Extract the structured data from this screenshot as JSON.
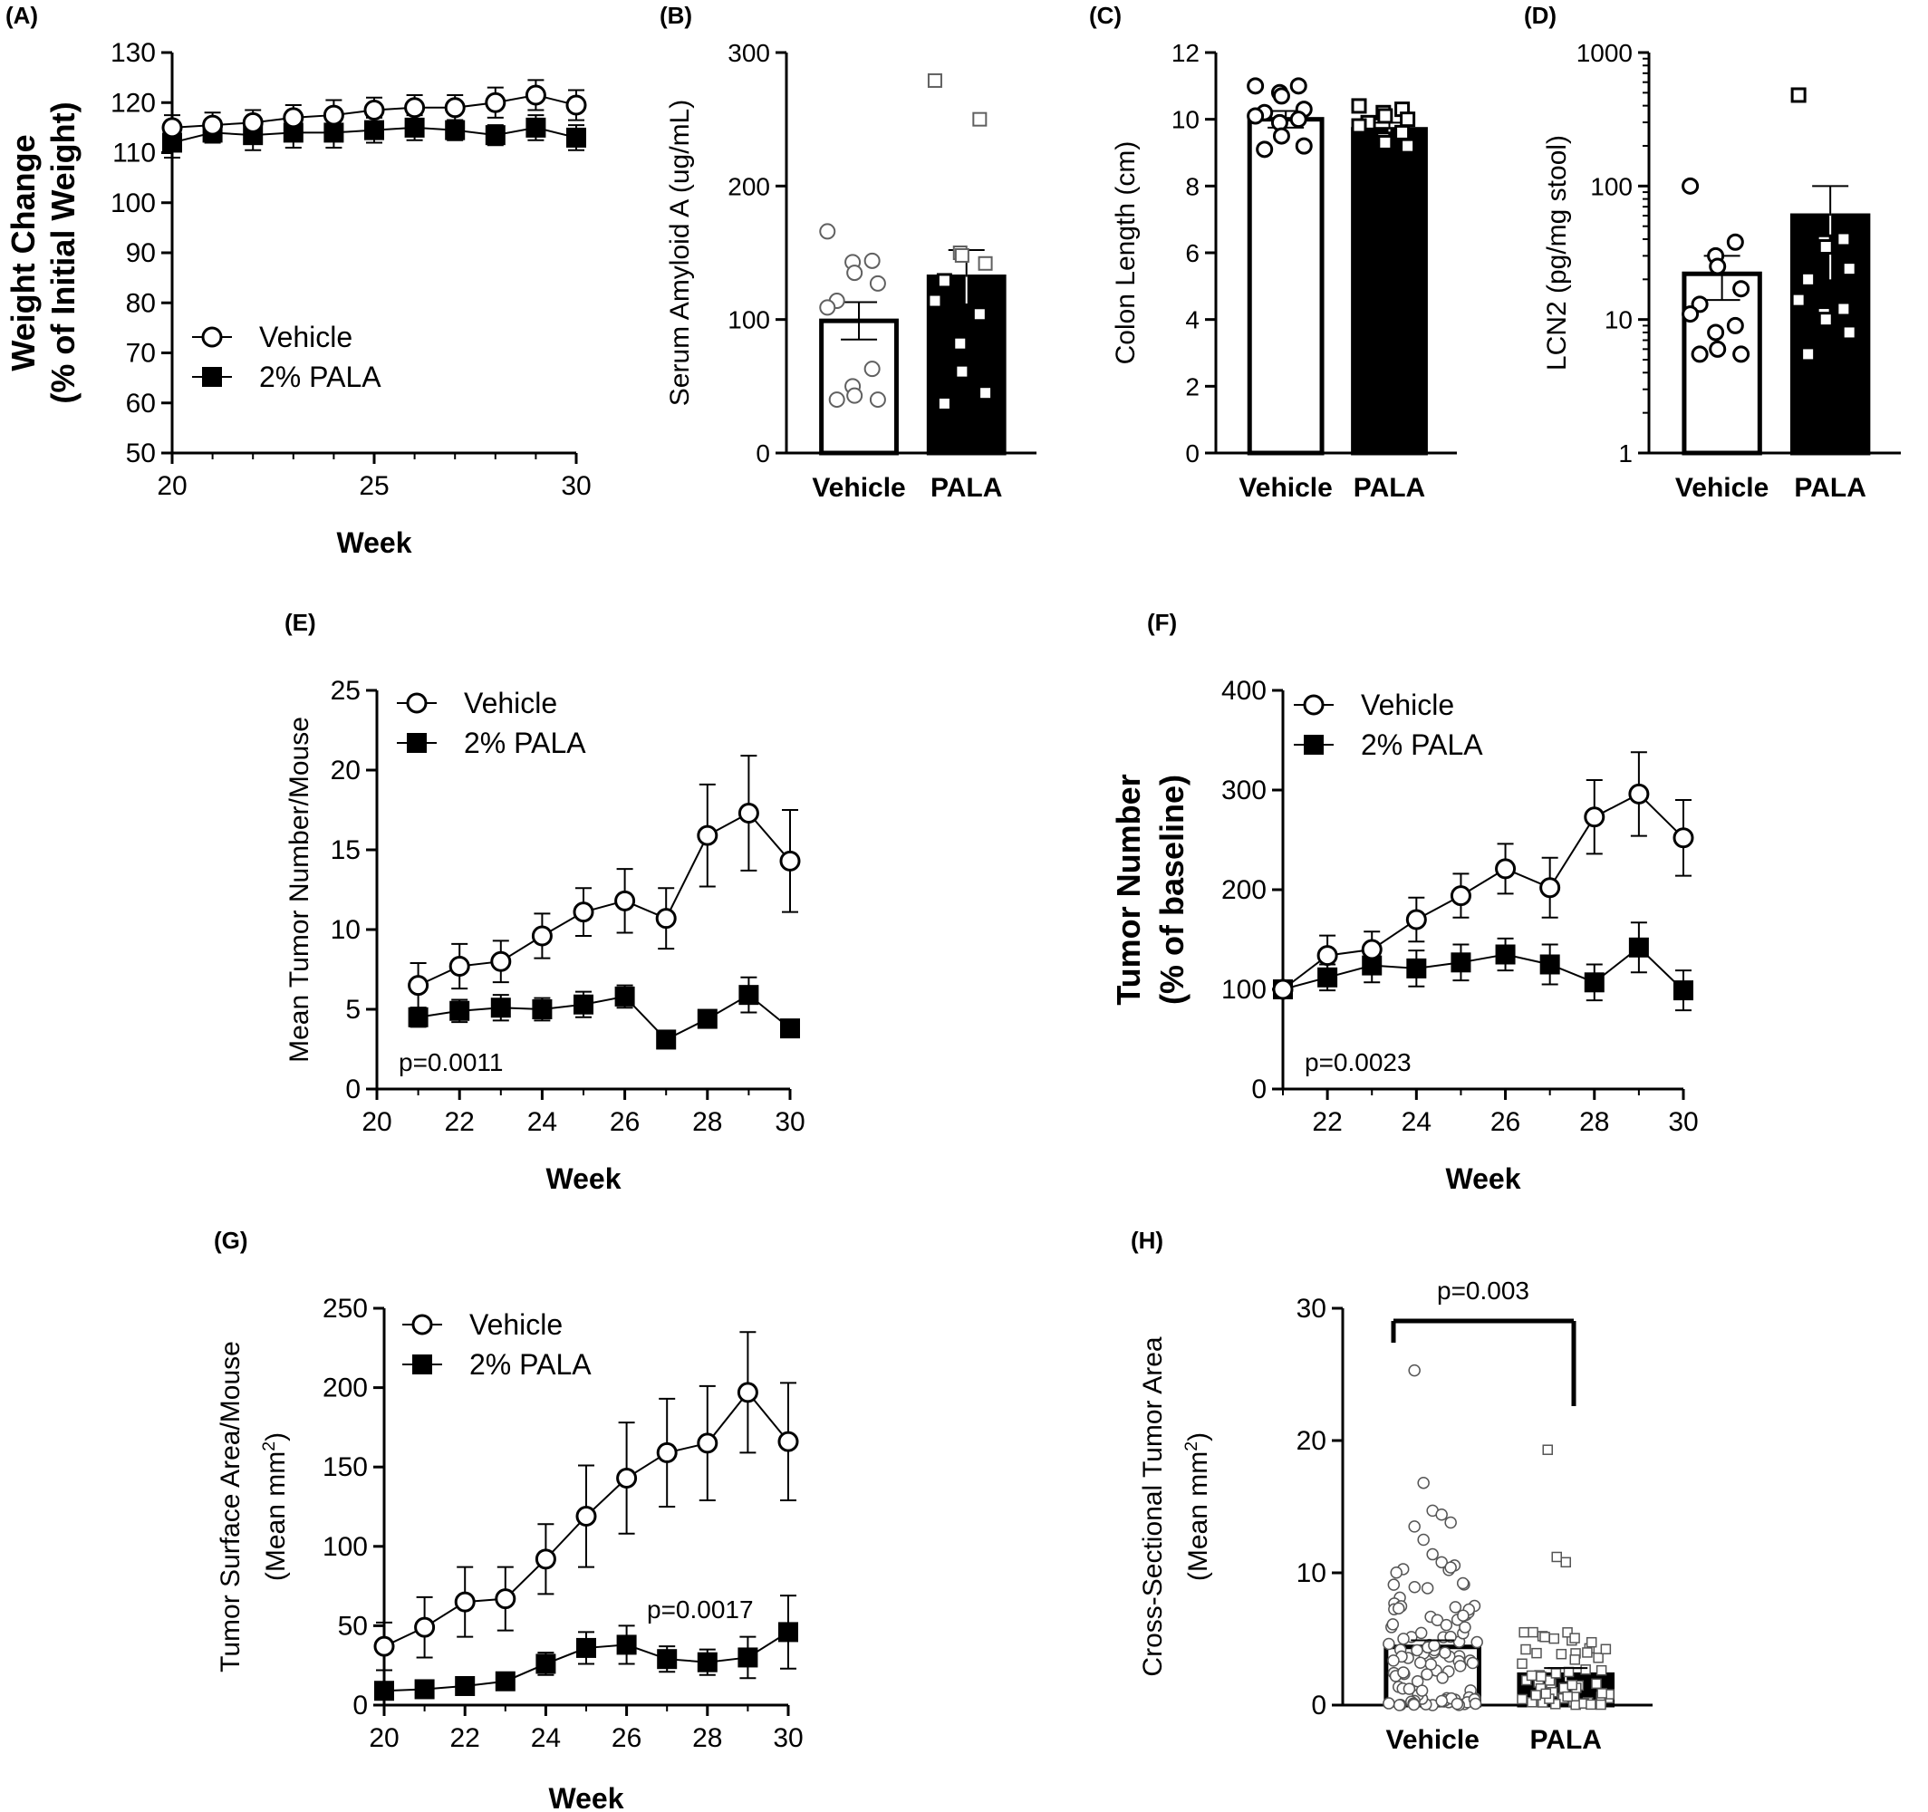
{
  "colors": {
    "ink": "#000000",
    "open_marker_fill": "#ffffff",
    "bar_vehicle_fill": "#ffffff",
    "bar_pala_fill": "#000000",
    "gray_marker": "#606060"
  },
  "panels": {
    "A": {
      "label": "(A)"
    },
    "B": {
      "label": "(B)"
    },
    "C": {
      "label": "(C)"
    },
    "D": {
      "label": "(D)"
    },
    "E": {
      "label": "(E)",
      "pvalue": "p=0.0011"
    },
    "F": {
      "label": "(F)",
      "pvalue": "p=0.0023"
    },
    "G": {
      "label": "(G)",
      "pvalue": "p=0.0017"
    },
    "H": {
      "label": "(H)",
      "pvalue": "p=0.003"
    }
  },
  "chart_data": [
    {
      "panel": "A",
      "type": "line",
      "xlabel": "Week",
      "ylabel": [
        "Weight Change",
        "(% of Initial Weight)"
      ],
      "xlim": [
        20,
        30
      ],
      "ylim": [
        50,
        130
      ],
      "xticks": [
        20,
        25,
        30
      ],
      "yticks": [
        50,
        60,
        70,
        80,
        90,
        100,
        110,
        120,
        130
      ],
      "legend_position": "middle-left",
      "x": [
        20,
        21,
        22,
        23,
        24,
        25,
        26,
        27,
        28,
        29,
        30
      ],
      "series": [
        {
          "name": "Vehicle",
          "marker": "open-circle",
          "values": [
            115,
            115.5,
            116,
            117,
            117.5,
            118.5,
            119,
            119,
            120,
            121.5,
            119.5
          ],
          "errors": [
            2.5,
            2.5,
            2.5,
            2.5,
            3,
            2.5,
            2.5,
            2.5,
            3,
            3,
            3
          ]
        },
        {
          "name": "2% PALA",
          "marker": "filled-square",
          "values": [
            112,
            114,
            113.5,
            114,
            114,
            114.5,
            115,
            114.5,
            113.5,
            115,
            113
          ],
          "errors": [
            3,
            2,
            3,
            3,
            3,
            2.5,
            2.5,
            2,
            2,
            2.5,
            2.5
          ]
        }
      ]
    },
    {
      "panel": "B",
      "type": "bar",
      "ylabel": "Serum Amyloid A (ug/mL)",
      "ylim": [
        0,
        300
      ],
      "yticks": [
        0,
        100,
        200,
        300
      ],
      "categories": [
        "Vehicle",
        "PALA"
      ],
      "values": [
        99,
        132
      ],
      "errors": [
        14,
        20
      ],
      "points": [
        [
          166,
          144,
          143,
          135,
          127,
          114,
          109,
          63,
          50,
          43,
          40,
          40
        ],
        [
          279,
          250,
          150,
          148,
          142,
          129,
          114,
          104,
          82,
          61,
          45,
          37
        ]
      ]
    },
    {
      "panel": "C",
      "type": "bar",
      "ylabel": "Colon Length (cm)",
      "ylim": [
        0,
        12
      ],
      "yticks": [
        0,
        2,
        4,
        6,
        8,
        10,
        12
      ],
      "categories": [
        "Vehicle",
        "PALA"
      ],
      "values": [
        10,
        9.7
      ],
      "errors": [
        0.25,
        0.2
      ],
      "points": [
        [
          11,
          11,
          10.8,
          10.7,
          10.3,
          10.2,
          10.1,
          10,
          9.9,
          9.5,
          9.2,
          9.1
        ],
        [
          10.4,
          10.3,
          10.2,
          10.1,
          10,
          9.9,
          9.8,
          9.6,
          9.4,
          9.3,
          9.2
        ]
      ]
    },
    {
      "panel": "D",
      "type": "bar",
      "yscale": "log",
      "ylabel": "LCN2 (pg/mg stool)",
      "ylim": [
        1,
        1000
      ],
      "yticks": [
        1,
        10,
        100,
        1000
      ],
      "categories": [
        "Vehicle",
        "PALA"
      ],
      "values": [
        22,
        60
      ],
      "errors": [
        8,
        40
      ],
      "points": [
        [
          100,
          38,
          30,
          25,
          17,
          13,
          11,
          9,
          8,
          6,
          5.5,
          5.5
        ],
        [
          480,
          40,
          38,
          35,
          24,
          20,
          14,
          12,
          11,
          10,
          8,
          5.5
        ]
      ]
    },
    {
      "panel": "E",
      "type": "line",
      "xlabel": "Week",
      "ylabel": "Mean Tumor Number/Mouse",
      "xlim": [
        20,
        30
      ],
      "ylim": [
        0,
        25
      ],
      "xticks": [
        20,
        22,
        24,
        26,
        28,
        30
      ],
      "yticks": [
        0,
        5,
        10,
        15,
        20,
        25
      ],
      "legend_position": "top-left",
      "x": [
        21,
        22,
        23,
        24,
        25,
        26,
        27,
        28,
        29,
        30
      ],
      "series": [
        {
          "name": "Vehicle",
          "marker": "open-circle",
          "values": [
            6.5,
            7.7,
            8,
            9.6,
            11.1,
            11.8,
            10.7,
            15.9,
            17.3,
            14.3
          ],
          "errors": [
            1.4,
            1.4,
            1.3,
            1.4,
            1.5,
            2.0,
            1.9,
            3.2,
            3.6,
            3.2
          ]
        },
        {
          "name": "2% PALA",
          "marker": "filled-square",
          "values": [
            4.5,
            4.9,
            5.1,
            5,
            5.3,
            5.8,
            3.1,
            4.4,
            5.9,
            3.8
          ],
          "errors": [
            0.6,
            0.7,
            0.8,
            0.7,
            0.8,
            0.7,
            0.3,
            0.5,
            1.1,
            0.4
          ]
        }
      ]
    },
    {
      "panel": "F",
      "type": "line",
      "xlabel": "Week",
      "ylabel": [
        "Tumor Number",
        "(% of baseline)"
      ],
      "xlim": [
        21,
        30
      ],
      "ylim": [
        0,
        400
      ],
      "xticks": [
        22,
        24,
        26,
        28,
        30
      ],
      "yticks": [
        0,
        100,
        200,
        300,
        400
      ],
      "legend_position": "top-left",
      "x": [
        21,
        22,
        23,
        24,
        25,
        26,
        27,
        28,
        29,
        30
      ],
      "series": [
        {
          "name": "Vehicle",
          "marker": "open-circle",
          "values": [
            100,
            134,
            140,
            170,
            194,
            221,
            202,
            273,
            296,
            252
          ],
          "errors": [
            0,
            20,
            18,
            22,
            22,
            25,
            30,
            37,
            42,
            38
          ]
        },
        {
          "name": "2% PALA",
          "marker": "filled-square",
          "values": [
            100,
            112,
            124,
            121,
            127,
            135,
            125,
            107,
            142,
            99
          ],
          "errors": [
            0,
            13,
            17,
            18,
            18,
            16,
            20,
            18,
            25,
            20
          ]
        }
      ]
    },
    {
      "panel": "G",
      "type": "line",
      "xlabel": "Week",
      "ylabel": [
        "Tumor Surface Area/Mouse",
        "(Mean mm²)"
      ],
      "xlim": [
        20,
        30
      ],
      "ylim": [
        0,
        250
      ],
      "xticks": [
        20,
        22,
        24,
        26,
        28,
        30
      ],
      "yticks": [
        0,
        50,
        100,
        150,
        200,
        250
      ],
      "legend_position": "top-left",
      "x": [
        20,
        21,
        22,
        23,
        24,
        25,
        26,
        27,
        28,
        29,
        30
      ],
      "series": [
        {
          "name": "Vehicle",
          "marker": "open-circle",
          "values": [
            37,
            49,
            65,
            67,
            92,
            119,
            143,
            159,
            165,
            197,
            166
          ],
          "errors": [
            15,
            19,
            22,
            20,
            22,
            32,
            35,
            34,
            36,
            38,
            37
          ]
        },
        {
          "name": "2% PALA",
          "marker": "filled-square",
          "values": [
            9,
            10,
            12,
            15,
            26,
            36,
            38,
            29,
            27,
            30,
            46
          ],
          "errors": [
            3,
            3,
            3,
            4,
            7,
            10,
            12,
            8,
            8,
            13,
            23
          ]
        }
      ]
    },
    {
      "panel": "H",
      "type": "bar",
      "ylabel": [
        "Cross-Sectional Tumor Area",
        "(Mean mm²)"
      ],
      "ylim": [
        0,
        30
      ],
      "yticks": [
        0,
        10,
        20,
        30
      ],
      "categories": [
        "Vehicle",
        "PALA"
      ],
      "values": [
        4.4,
        2.3
      ],
      "errors": [
        0.5,
        0.5
      ],
      "outliers": [
        [
          25.3,
          16.8,
          14.7,
          14.4,
          13.8,
          13.5,
          12.5,
          11.4,
          10.8,
          10.4
        ],
        [
          19.3,
          11.2,
          10.8
        ]
      ],
      "n_points": [
        95,
        60
      ]
    }
  ]
}
